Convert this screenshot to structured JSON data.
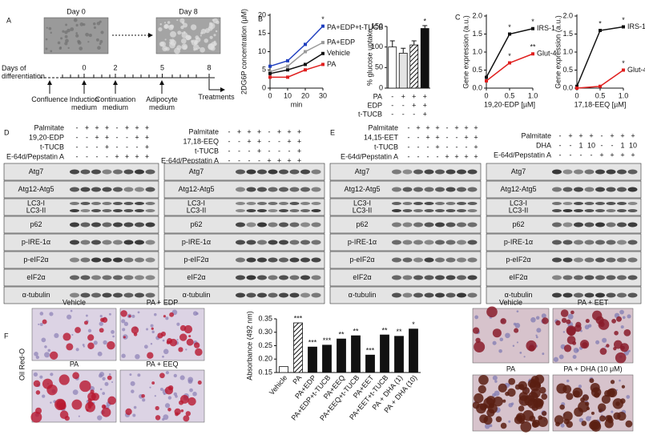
{
  "panel_labels": [
    "A",
    "B",
    "C",
    "D",
    "E",
    "F"
  ],
  "panel_a": {
    "images": [
      "Day 0",
      "Day 8"
    ],
    "axis_label": "Days of differentiation",
    "days": [
      0,
      2,
      5,
      8
    ],
    "steps": [
      "Confluence",
      "Induction medium",
      "Continuation medium",
      "Adipocyte medium",
      "Treatments"
    ]
  },
  "chart_data": [
    {
      "type": "line",
      "y_label": "2DG6P concentration (µM)",
      "x_label": "min",
      "x": [
        0,
        10,
        20,
        30
      ],
      "xlim": [
        0,
        30
      ],
      "xticks": [
        0,
        10,
        20,
        30
      ],
      "ylim": [
        0,
        20
      ],
      "yticks": [
        0,
        5,
        10,
        15,
        20
      ],
      "series": [
        {
          "name": "PA+EDP+t-TUCB",
          "color": "#1f3fbf",
          "values": [
            6,
            7.5,
            12,
            17
          ],
          "point_labels": [
            null,
            null,
            null,
            "*"
          ]
        },
        {
          "name": "PA+EDP",
          "color": "#9a9a9a",
          "values": [
            4.5,
            6,
            10,
            12.5
          ]
        },
        {
          "name": "Vehicle",
          "color": "#111111",
          "values": [
            4,
            5,
            6.5,
            9.5
          ]
        },
        {
          "name": "PA",
          "color": "#e0201f",
          "values": [
            3,
            3,
            5,
            6.5
          ]
        }
      ]
    },
    {
      "type": "bar",
      "y_label": "% glucose uptake",
      "values": [
        100,
        85,
        105,
        145
      ],
      "errors": [
        15,
        12,
        10,
        7
      ],
      "colors": [
        "#ffffff",
        "#e4e4e4",
        "#ffffff",
        "#111111"
      ],
      "hatched": [
        false,
        false,
        true,
        false
      ],
      "point_labels": [
        null,
        null,
        null,
        "*"
      ],
      "ylim": [
        0,
        150
      ],
      "yticks": [
        0,
        50,
        100,
        150
      ],
      "conditions": [
        {
          "name": "PA",
          "signs": [
            "-",
            "+",
            "+",
            "+"
          ]
        },
        {
          "name": "EDP",
          "signs": [
            "-",
            "-",
            "+",
            "+"
          ]
        },
        {
          "name": "t-TUCB",
          "signs": [
            "-",
            "-",
            "-",
            "+"
          ]
        }
      ]
    },
    {
      "type": "line",
      "y_label": "Gene expression (a.u.)",
      "x_label": "19,20-EDP [µM]",
      "x": [
        0,
        0.5,
        1
      ],
      "xlim": [
        0,
        1
      ],
      "xticks": [
        0,
        0.5,
        {
          "value": 1,
          "label": "1.0"
        }
      ],
      "ylim": [
        0,
        2
      ],
      "yticks": [
        {
          "value": 0,
          "label": "0.0"
        },
        0.5,
        {
          "value": 1,
          "label": "1.0"
        },
        1.5,
        {
          "value": 2,
          "label": "2.0"
        }
      ],
      "series": [
        {
          "name": "IRS-1",
          "color": "#111111",
          "values": [
            0.3,
            1.5,
            1.65
          ],
          "point_labels": [
            null,
            "*",
            "*"
          ]
        },
        {
          "name": "Glut-4",
          "color": "#e0201f",
          "values": [
            0.2,
            0.7,
            0.95
          ],
          "point_labels": [
            null,
            "*",
            "**"
          ]
        }
      ]
    },
    {
      "type": "line",
      "y_label": "Gene expression (a.u.)",
      "x_label": "17,18-EEQ [µM]",
      "x": [
        0,
        0.5,
        1
      ],
      "xlim": [
        0,
        1
      ],
      "xticks": [
        0,
        0.5,
        {
          "value": 1,
          "label": "1.0"
        }
      ],
      "ylim": [
        0,
        2
      ],
      "yticks": [
        {
          "value": 0,
          "label": "0.0"
        },
        0.5,
        {
          "value": 1,
          "label": "1.0"
        },
        1.5,
        {
          "value": 2,
          "label": "2.0"
        }
      ],
      "series": [
        {
          "name": "IRS-1",
          "color": "#111111",
          "values": [
            0.05,
            1.6,
            1.7
          ],
          "point_labels": [
            null,
            "*",
            "*"
          ]
        },
        {
          "name": "Glut-4",
          "color": "#e0201f",
          "values": [
            0,
            0.05,
            0.5
          ],
          "point_labels": [
            null,
            null,
            "*"
          ]
        }
      ]
    },
    {
      "type": "bar",
      "y_label": "Absorbance (492 nm)",
      "categories": [
        "Vehicle",
        "PA",
        "PA+EDP",
        "PA+EDP+t-TUCB",
        "PA+EEQ",
        "PA+EEQ+t-TUCB",
        "PA+EET",
        "PA+EET+t-TUCB",
        "PA + DHA (1)",
        "PA + DHA (10)"
      ],
      "values": [
        0.172,
        0.335,
        0.245,
        0.252,
        0.275,
        0.287,
        0.215,
        0.29,
        0.285,
        0.312
      ],
      "colors": [
        "#ffffff",
        "#ffffff",
        "#111111",
        "#111111",
        "#111111",
        "#111111",
        "#111111",
        "#111111",
        "#111111",
        "#111111"
      ],
      "hatched": [
        false,
        true,
        false,
        false,
        false,
        false,
        false,
        false,
        false,
        false
      ],
      "point_labels": [
        null,
        "***",
        "***",
        "***",
        "**",
        "**",
        "***",
        "**",
        "**",
        "*"
      ],
      "ylim": [
        0.15,
        0.35
      ],
      "yticks": [
        0.15,
        {
          "value": 0.2,
          "label": "0.20"
        },
        0.25,
        {
          "value": 0.3,
          "label": "0.30"
        },
        0.35
      ]
    }
  ],
  "blots": [
    {
      "treatments": [
        {
          "name": "Palmitate",
          "lanes": [
            "-",
            "+",
            "+",
            "+",
            "-",
            "+",
            "+",
            "+"
          ]
        },
        {
          "name": "19,20-EDP",
          "lanes": [
            "-",
            "-",
            "+",
            "+",
            "-",
            "-",
            "+",
            "+"
          ]
        },
        {
          "name": "t-TUCB",
          "lanes": [
            "-",
            "-",
            "-",
            "+",
            "-",
            "-",
            "-",
            "+"
          ]
        },
        {
          "name": "E-64d/Pepstatin A",
          "lanes": [
            "-",
            "-",
            "-",
            "-",
            "+",
            "+",
            "+",
            "+"
          ]
        }
      ],
      "strips": [
        [
          "Atg7"
        ],
        [
          "Atg12-Atg5"
        ],
        [
          "LC3-I",
          "LC3-II"
        ],
        [
          "p62"
        ],
        [
          "p-IRE-1α"
        ],
        [
          "p-eIF2α"
        ],
        [
          "eIF2α"
        ],
        [
          "α-tubulin"
        ]
      ]
    },
    {
      "treatments": [
        {
          "name": "Palmitate",
          "lanes": [
            "-",
            "+",
            "+",
            "+",
            "-",
            "+",
            "+",
            "+"
          ]
        },
        {
          "name": "17,18-EEQ",
          "lanes": [
            "-",
            "-",
            "+",
            "+",
            "-",
            "-",
            "+",
            "+"
          ]
        },
        {
          "name": "t-TUCB",
          "lanes": [
            "-",
            "-",
            "-",
            "+",
            "-",
            "-",
            "-",
            "+"
          ]
        },
        {
          "name": "E-64d/Pepstatin A",
          "lanes": [
            "-",
            "-",
            "-",
            "-",
            "+",
            "+",
            "+",
            "+"
          ]
        }
      ],
      "strips": [
        [
          "Atg7"
        ],
        [
          "Atg12-Atg5"
        ],
        [
          "LC3-I",
          "LC3-II"
        ],
        [
          "p62"
        ],
        [
          "p-IRE-1α"
        ],
        [
          "p-eIF2α"
        ],
        [
          "eIF2α"
        ],
        [
          "α-tubulin"
        ]
      ]
    },
    {
      "treatments": [
        {
          "name": "Palmitate",
          "lanes": [
            "-",
            "+",
            "+",
            "+",
            "-",
            "+",
            "+",
            "+"
          ]
        },
        {
          "name": "14,15-EET",
          "lanes": [
            "-",
            "-",
            "+",
            "+",
            "-",
            "-",
            "+",
            "+"
          ]
        },
        {
          "name": "t-TUCB",
          "lanes": [
            "-",
            "-",
            "-",
            "+",
            "-",
            "-",
            "-",
            "+"
          ]
        },
        {
          "name": "E-64d/Pepstatin A",
          "lanes": [
            "-",
            "-",
            "-",
            "-",
            "+",
            "+",
            "+",
            "+"
          ]
        }
      ],
      "strips": [
        [
          "Atg7"
        ],
        [
          "Atg12-Atg5"
        ],
        [
          "LC3-I",
          "LC3-II"
        ],
        [
          "p62"
        ],
        [
          "p-IRE-1α"
        ],
        [
          "p-eIF2α"
        ],
        [
          "eIF2α"
        ],
        [
          "α-tubulin"
        ]
      ]
    },
    {
      "treatments": [
        {
          "name": "Palmitate",
          "lanes": [
            "-",
            "+",
            "+",
            "+",
            "-",
            "+",
            "+",
            "+"
          ]
        },
        {
          "name": "DHA",
          "lanes": [
            "-",
            "-",
            "1",
            "10",
            "-",
            "-",
            "1",
            "10"
          ]
        },
        {
          "name": "E-64d/Pepstatin A",
          "lanes": [
            "-",
            "-",
            "-",
            "-",
            "+",
            "+",
            "+",
            "+"
          ]
        }
      ],
      "strips": [
        [
          "Atg7"
        ],
        [
          "Atg12-Atg5"
        ],
        [
          "LC3-I",
          "LC3-II"
        ],
        [
          "p62"
        ],
        [
          "p-IRE-1α"
        ],
        [
          "p-eIF2α"
        ],
        [
          "eIF2α"
        ],
        [
          "α-tubulin"
        ]
      ]
    }
  ],
  "panel_f": {
    "y_label": "Oil Red-O",
    "images_left": [
      "Vehicle",
      "PA + EDP",
      "PA",
      "PA + EEQ"
    ],
    "images_right": [
      "Vehicle",
      "PA + EET",
      "PA",
      "PA + DHA (10 μM)"
    ]
  }
}
